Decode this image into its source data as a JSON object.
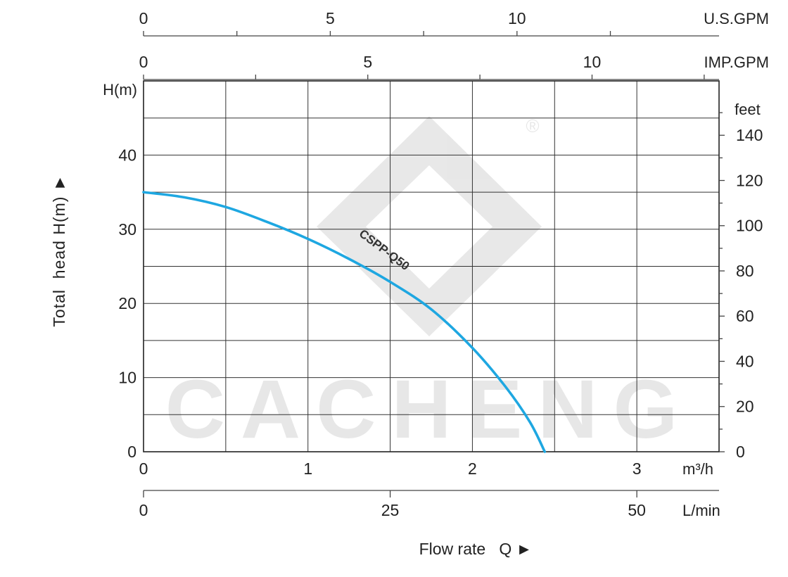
{
  "chart_data": {
    "type": "line",
    "xlabel": "Flow rate   Q ►",
    "ylabel": "Total  head H(m) ►",
    "x_unit": "m³/h",
    "y_unit": "H(m)",
    "xlim": [
      0,
      3.5
    ],
    "ylim": [
      0,
      50
    ],
    "x_ticks": [
      0,
      1,
      2,
      3
    ],
    "y_ticks": [
      0,
      10,
      20,
      30,
      40
    ],
    "grid": true,
    "series": [
      {
        "name": "CSPP-Q50",
        "color": "#1ea7e1",
        "x": [
          0,
          0.25,
          0.5,
          0.75,
          1.0,
          1.25,
          1.5,
          1.75,
          2.0,
          2.2,
          2.35,
          2.44
        ],
        "y": [
          35,
          34.3,
          33.0,
          31.0,
          28.7,
          26.0,
          22.9,
          19.2,
          14.0,
          8.8,
          4.0,
          0
        ]
      }
    ],
    "secondary_axes": {
      "feet": {
        "label": "feet",
        "ticks": [
          0,
          20,
          40,
          60,
          80,
          100,
          120,
          140
        ],
        "per_y_unit": 3.2808
      },
      "l_min": {
        "label": "L/min",
        "ticks": [
          0,
          25,
          50
        ],
        "per_x_unit": 16.6667
      },
      "us_gpm": {
        "label": "U.S.GPM",
        "ticks": [
          0,
          5,
          10
        ],
        "minor": [
          2.5,
          7.5,
          12.5
        ],
        "per_x_unit": 4.4029
      },
      "imp_gpm": {
        "label": "IMP.GPM",
        "ticks": [
          0,
          5,
          10
        ],
        "per_x_unit": 3.6662
      }
    }
  },
  "watermark": {
    "text": "CACHENG",
    "registered": "®"
  }
}
